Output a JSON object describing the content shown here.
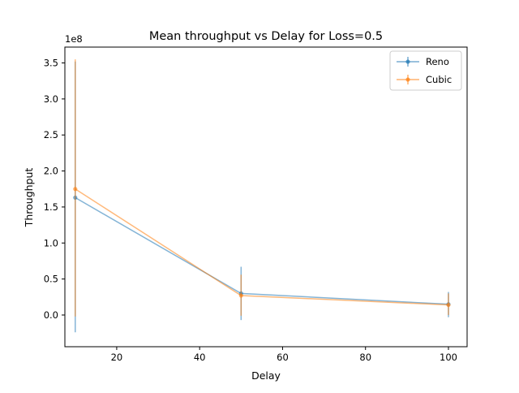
{
  "chart_data": {
    "type": "line",
    "title": "Mean throughput vs Delay for Loss=0.5",
    "xlabel": "Delay",
    "ylabel": "Throughput",
    "y_offset_label": "1e8",
    "xlim": [
      7.5,
      104.5
    ],
    "ylim": [
      -0.44,
      3.72
    ],
    "x_ticks": [
      20,
      40,
      60,
      80,
      100
    ],
    "y_ticks": [
      0.0,
      0.5,
      1.0,
      1.5,
      2.0,
      2.5,
      3.0,
      3.5
    ],
    "x_tick_labels": [
      "20",
      "40",
      "60",
      "80",
      "100"
    ],
    "y_tick_labels": [
      "0.0",
      "0.5",
      "1.0",
      "1.5",
      "2.0",
      "2.5",
      "3.0",
      "3.5"
    ],
    "legend_position": "top-right",
    "grid": false,
    "series": [
      {
        "name": "Reno",
        "color": "#1f77b4",
        "x": [
          10,
          50,
          100
        ],
        "y": [
          1.63,
          0.3,
          0.15
        ],
        "err_low": [
          -0.24,
          -0.07,
          -0.03
        ],
        "err_high": [
          3.52,
          0.67,
          0.32
        ]
      },
      {
        "name": "Cubic",
        "color": "#ff7f0e",
        "x": [
          10,
          50,
          100
        ],
        "y": [
          1.75,
          0.27,
          0.14
        ],
        "err_low": [
          -0.02,
          -0.01,
          0.0
        ],
        "err_high": [
          3.55,
          0.56,
          0.3
        ]
      }
    ]
  }
}
